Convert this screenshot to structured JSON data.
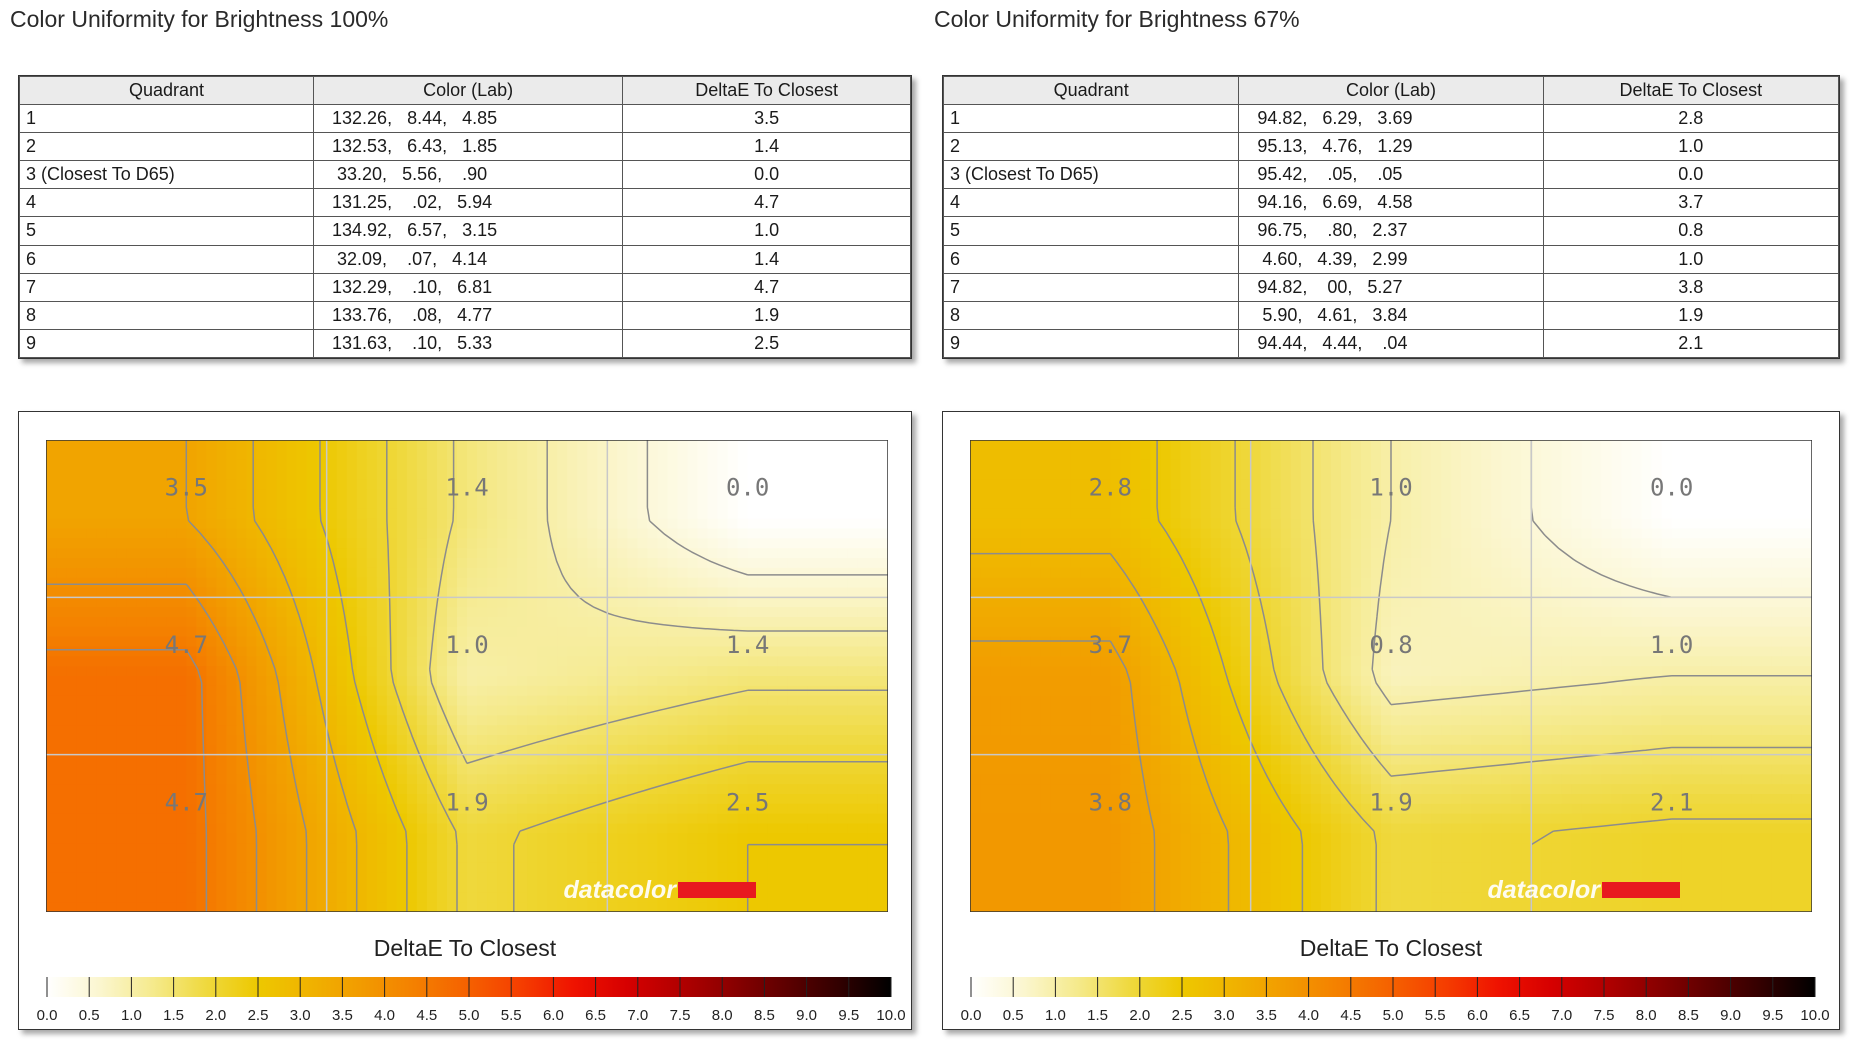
{
  "panels": [
    {
      "title": "Color Uniformity for Brightness 100%",
      "table": {
        "headers": [
          "Quadrant",
          "Color (Lab)",
          "DeltaE To Closest"
        ],
        "rows": [
          [
            "1",
            "132.26,   8.44,   4.85",
            "3.5"
          ],
          [
            "2",
            "132.53,   6.43,   1.85",
            "1.4"
          ],
          [
            "3 (Closest To D65)",
            " 33.20,   5.56,    .90",
            "0.0"
          ],
          [
            "4",
            "131.25,    .02,   5.94",
            "4.7"
          ],
          [
            "5",
            "134.92,   6.57,   3.15",
            "1.0"
          ],
          [
            "6",
            " 32.09,    .07,   4.14",
            "1.4"
          ],
          [
            "7",
            "132.29,    .10,   6.81",
            "4.7"
          ],
          [
            "8",
            "133.76,    .08,   4.77",
            "1.9"
          ],
          [
            "9",
            "131.63,    .10,   5.33",
            "2.5"
          ]
        ]
      },
      "chart_data": {
        "type": "heatmap",
        "title": "",
        "grid": "3x3",
        "cell_labels": [
          [
            "3.5",
            "1.4",
            "0.0"
          ],
          [
            "4.7",
            "1.0",
            "1.4"
          ],
          [
            "4.7",
            "1.9",
            "2.5"
          ]
        ],
        "values": [
          [
            3.5,
            1.4,
            0.0
          ],
          [
            4.7,
            1.0,
            1.4
          ],
          [
            4.7,
            1.9,
            2.5
          ]
        ],
        "colorbar_label": "DeltaE To Closest",
        "colorbar_range": [
          0,
          10
        ],
        "colorbar_ticks": [
          "0.0",
          "0.5",
          "1.0",
          "1.5",
          "2.0",
          "2.5",
          "3.0",
          "3.5",
          "4.0",
          "4.5",
          "5.0",
          "5.5",
          "6.0",
          "6.5",
          "7.0",
          "7.5",
          "8.0",
          "8.5",
          "9.0",
          "9.5",
          "10.0"
        ],
        "watermark": "datacolor"
      }
    },
    {
      "title": "Color Uniformity for Brightness 67%",
      "table": {
        "headers": [
          "Quadrant",
          "Color (Lab)",
          "DeltaE To Closest"
        ],
        "rows": [
          [
            "1",
            "94.82,   6.29,   3.69",
            "2.8"
          ],
          [
            "2",
            "95.13,   4.76,   1.29",
            "1.0"
          ],
          [
            "3 (Closest To D65)",
            "95.42,    .05,    .05",
            "0.0"
          ],
          [
            "4",
            "94.16,   6.69,   4.58",
            "3.7"
          ],
          [
            "5",
            "96.75,    .80,   2.37",
            "0.8"
          ],
          [
            "6",
            " 4.60,   4.39,   2.99",
            "1.0"
          ],
          [
            "7",
            "94.82,    00,   5.27",
            "3.8"
          ],
          [
            "8",
            " 5.90,   4.61,   3.84",
            "1.9"
          ],
          [
            "9",
            "94.44,   4.44,    .04",
            "2.1"
          ]
        ]
      },
      "chart_data": {
        "type": "heatmap",
        "title": "",
        "grid": "3x3",
        "cell_labels": [
          [
            "2.8",
            "1.0",
            "0.0"
          ],
          [
            "3.7",
            "0.8",
            "1.0"
          ],
          [
            "3.8",
            "1.9",
            "2.1"
          ]
        ],
        "values": [
          [
            2.8,
            1.0,
            0.0
          ],
          [
            3.7,
            0.8,
            1.0
          ],
          [
            3.8,
            1.9,
            2.1
          ]
        ],
        "colorbar_label": "DeltaE To Closest",
        "colorbar_range": [
          0,
          10
        ],
        "colorbar_ticks": [
          "0.0",
          "0.5",
          "1.0",
          "1.5",
          "2.0",
          "2.5",
          "3.0",
          "3.5",
          "4.0",
          "4.5",
          "5.0",
          "5.5",
          "6.0",
          "6.5",
          "7.0",
          "7.5",
          "8.0",
          "8.5",
          "9.0",
          "9.5",
          "10.0"
        ],
        "watermark": "datacolor"
      }
    }
  ],
  "colors": {
    "colormap": [
      "#ffffff",
      "#fbf6cf",
      "#f5ea8d",
      "#efd93f",
      "#edc800",
      "#f0b200",
      "#f29a00",
      "#f47f00",
      "#f56000",
      "#f53d00",
      "#ef1200",
      "#d60000",
      "#b20000",
      "#8a0000",
      "#5e0000",
      "#320000",
      "#000000"
    ],
    "watermark_bar": "#e8191f",
    "contour": "#8c8c8c",
    "gridline": "#c8c8c8",
    "cell_label": "#777777"
  }
}
